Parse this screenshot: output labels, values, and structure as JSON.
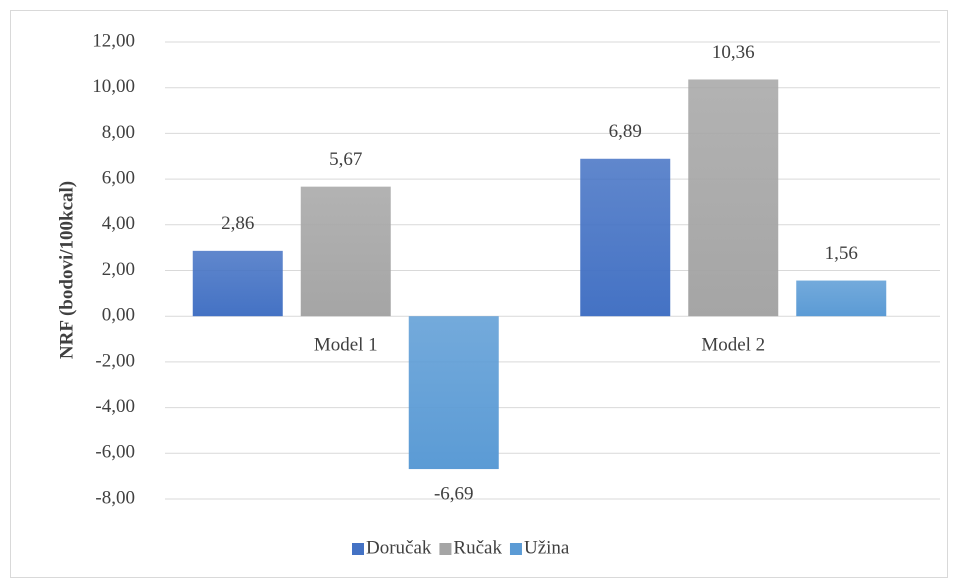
{
  "chart_data": {
    "type": "bar",
    "y_label": "NRF (bodovi/100kcal)",
    "categories": [
      "Model 1",
      "Model 2"
    ],
    "series": [
      {
        "name": "Doručak",
        "color": "#4472c4",
        "values": [
          2.86,
          6.89
        ],
        "value_labels": [
          "2,86",
          "6,89"
        ]
      },
      {
        "name": "Ručak",
        "color": "#a5a5a5",
        "values": [
          5.67,
          10.36
        ],
        "value_labels": [
          "5,67",
          "10,36"
        ]
      },
      {
        "name": "Užina",
        "color": "#5b9bd5",
        "values": [
          -6.69,
          1.56
        ],
        "value_labels": [
          "-6,69",
          "1,56"
        ]
      }
    ],
    "ylim": [
      -8,
      12
    ],
    "yticks": [
      {
        "value": -8,
        "label": "-8,00"
      },
      {
        "value": -6,
        "label": "-6,00"
      },
      {
        "value": -4,
        "label": "-4,00"
      },
      {
        "value": -2,
        "label": "-2,00"
      },
      {
        "value": 0,
        "label": "0,00"
      },
      {
        "value": 2,
        "label": "2,00"
      },
      {
        "value": 4,
        "label": "4,00"
      },
      {
        "value": 6,
        "label": "6,00"
      },
      {
        "value": 8,
        "label": "8,00"
      },
      {
        "value": 10,
        "label": "10,00"
      },
      {
        "value": 12,
        "label": "12,00"
      }
    ],
    "grid": true,
    "legend": "bottom"
  }
}
